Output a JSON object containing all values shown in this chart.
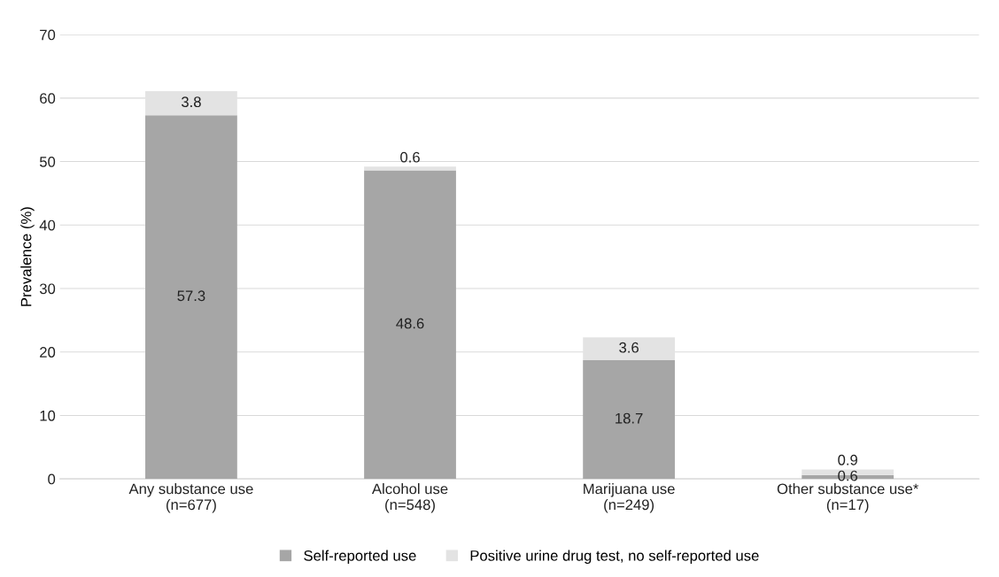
{
  "chart_data": {
    "type": "bar",
    "stacked": true,
    "ylabel": "Prevalence (%)",
    "categories": [
      "Any substance use\n(n=677)",
      "Alcohol use\n(n=548)",
      "Marijuana use\n(n=249)",
      "Other substance use*\n(n=17)"
    ],
    "series": [
      {
        "name": "Self-reported use",
        "color": "#a6a6a6",
        "values": [
          57.3,
          48.6,
          18.7,
          0.6
        ]
      },
      {
        "name": "Positive urine drug test, no self-reported use",
        "color": "#e3e3e3",
        "values": [
          3.8,
          0.6,
          3.6,
          0.9
        ]
      }
    ],
    "ylim": [
      0,
      70
    ],
    "yticks": [
      0,
      10,
      20,
      30,
      40,
      50,
      60,
      70
    ],
    "grid": "y",
    "legend": "bottom",
    "data_labels": true
  }
}
